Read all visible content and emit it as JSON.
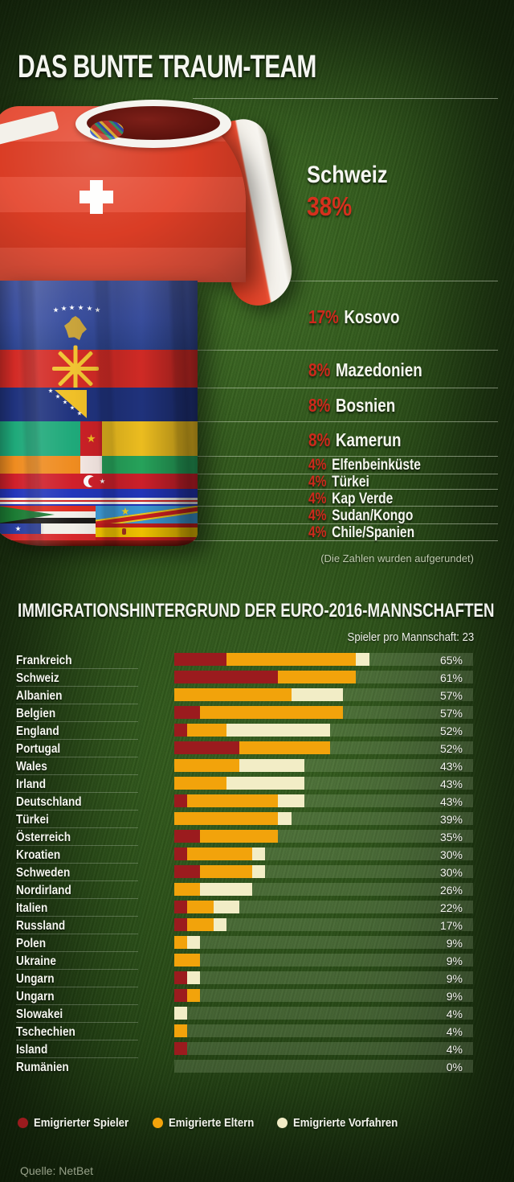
{
  "header": {
    "title": "DAS BUNTE TRAUM-TEAM"
  },
  "jersey": {
    "main": {
      "country": "Schweiz",
      "percent": "38%"
    },
    "flags": [
      {
        "percent": "17%",
        "country": "Kosovo"
      },
      {
        "percent": "8%",
        "country": "Mazedonien"
      },
      {
        "percent": "8%",
        "country": "Bosnien"
      },
      {
        "percent": "8%",
        "country": "Kamerun"
      },
      {
        "percent": "4%",
        "country": "Elfenbeinküste"
      },
      {
        "percent": "4%",
        "country": "Türkei"
      },
      {
        "percent": "4%",
        "country": "Kap Verde"
      },
      {
        "percent": "4%",
        "country": "Sudan/Kongo"
      },
      {
        "percent": "4%",
        "country": "Chile/Spanien"
      }
    ],
    "note": "(Die Zahlen wurden aufgerundet)"
  },
  "chart": {
    "title": "IMMIGRATIONSHINTERGRUND DER EURO-2016-MANNSCHAFTEN",
    "subtitle": "Spieler pro Mannschaft: 23",
    "source": "Quelle: NetBet"
  },
  "chart_data": {
    "type": "bar",
    "stacked": true,
    "orientation": "horizontal",
    "unit": "Spieler von 23 je Kategorie; Balkenlänge = Anteil in Prozent",
    "xlim": [
      0,
      100
    ],
    "legend_position": "bottom",
    "categories": [
      "Frankreich",
      "Schweiz",
      "Albanien",
      "Belgien",
      "England",
      "Portugal",
      "Wales",
      "Irland",
      "Deutschland",
      "Türkei",
      "Österreich",
      "Kroatien",
      "Schweden",
      "Nordirland",
      "Italien",
      "Russland",
      "Polen",
      "Ukraine",
      "Ungarn",
      "Ungarn",
      "Slowakei",
      "Tschechien",
      "Island",
      "Rumänien"
    ],
    "series": [
      {
        "name": "Emigrierter Spieler",
        "color": "#9B1B1E",
        "values": [
          4,
          8,
          0,
          2,
          1,
          5,
          0,
          0,
          1,
          0,
          2,
          1,
          2,
          0,
          1,
          1,
          0,
          0,
          1,
          1,
          0,
          0,
          1,
          0
        ]
      },
      {
        "name": "Emigrierte Eltern",
        "color": "#F2A30B",
        "values": [
          10,
          6,
          9,
          11,
          3,
          7,
          5,
          4,
          7,
          8,
          6,
          5,
          4,
          2,
          2,
          2,
          1,
          2,
          0,
          1,
          0,
          1,
          0,
          0
        ]
      },
      {
        "name": "Emigrierte Vorfahren",
        "color": "#F2EDC6",
        "values": [
          1,
          0,
          4,
          0,
          8,
          0,
          5,
          6,
          2,
          1,
          0,
          1,
          1,
          4,
          2,
          1,
          1,
          0,
          1,
          0,
          1,
          0,
          0,
          0
        ]
      }
    ],
    "totals_percent": [
      "65%",
      "61%",
      "57%",
      "57%",
      "52%",
      "52%",
      "43%",
      "43%",
      "43%",
      "39%",
      "35%",
      "30%",
      "30%",
      "26%",
      "22%",
      "17%",
      "9%",
      "9%",
      "9%",
      "9%",
      "4%",
      "4%",
      "4%",
      "0%"
    ]
  }
}
